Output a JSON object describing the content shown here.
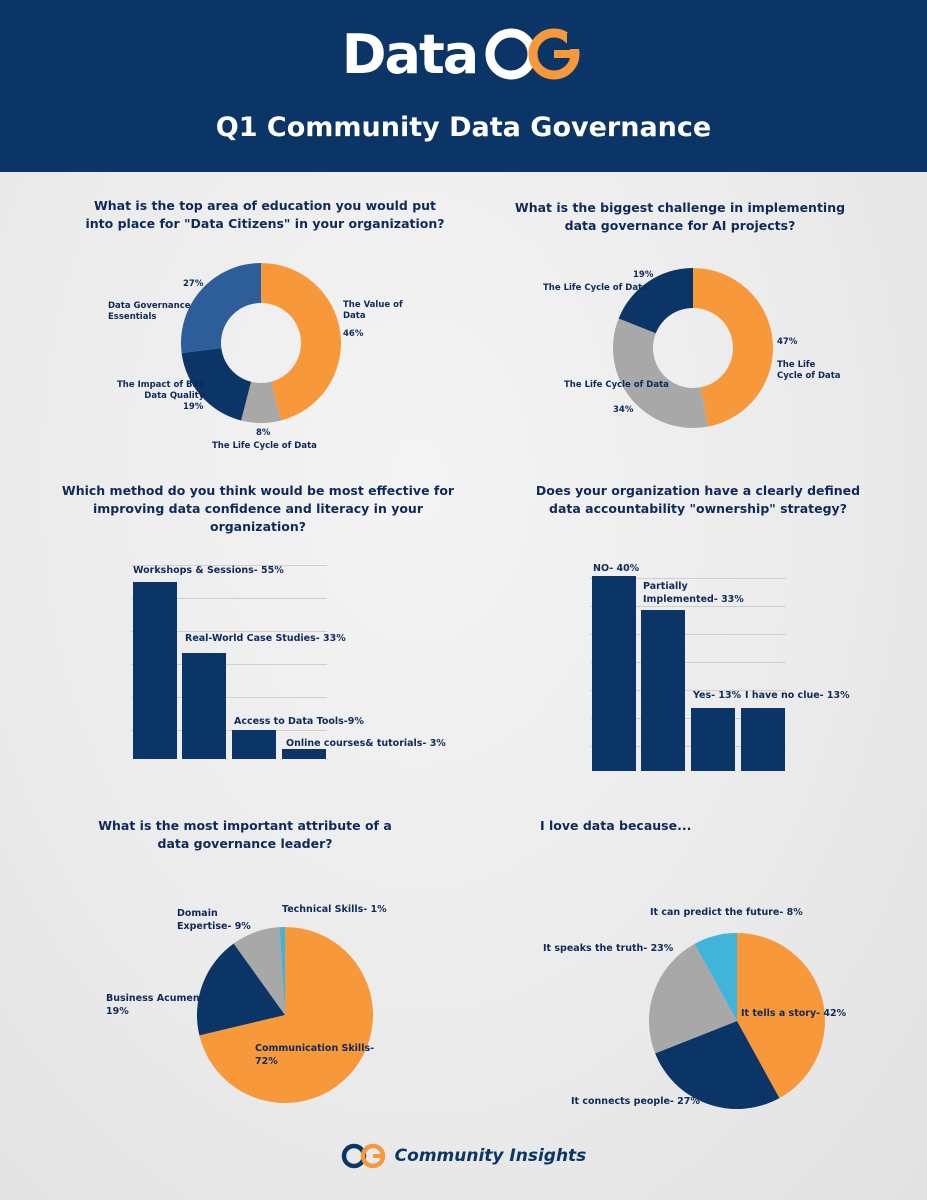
{
  "header": {
    "logo_text": "Data",
    "logo_mark": "CG",
    "title": "Q1 Community Data Governance"
  },
  "footer": {
    "label": "Community Insights"
  },
  "colors": {
    "navy": "#0a3566",
    "orange": "#f7993b",
    "gray": "#a8a8a8",
    "blue": "#2e5e99",
    "cyan": "#41b4d9"
  },
  "chart_data": [
    {
      "type": "pie",
      "title": "What is the top area of education you would put into place for \"Data Citizens\" in your organization?",
      "labels": [
        "The Value of Data",
        "The Life Cycle of Data",
        "The Impact of Bad Data Quality",
        "Data Governance Essentials"
      ],
      "values": [
        46,
        8,
        19,
        27
      ],
      "value_labels": [
        "46%",
        "8%",
        "19%",
        "27%"
      ],
      "colors": [
        "#f7993b",
        "#a8a8a8",
        "#0a3566",
        "#2e5e99"
      ],
      "donut": true
    },
    {
      "type": "pie",
      "title": "What is the biggest challenge in implementing data governance for AI projects?",
      "labels": [
        "The Life Cycle of Data",
        "The Life Cycle of Data",
        "The Life Cycle of Data"
      ],
      "values": [
        47,
        34,
        19
      ],
      "value_labels": [
        "47%",
        "34%",
        "19%"
      ],
      "colors": [
        "#f7993b",
        "#a8a8a8",
        "#0a3566"
      ],
      "donut": true
    },
    {
      "type": "bar",
      "title": "Which method do you think would be most effective for improving data confidence and literacy in your organization?",
      "categories": [
        "Workshops & Sessions- 55%",
        "Real-World Case Studies- 33%",
        "Access to Data Tools-9%",
        "Online courses& tutorials- 3%"
      ],
      "values": [
        55,
        33,
        9,
        3
      ]
    },
    {
      "type": "bar",
      "title": "Does your organization have a clearly defined data accountability \"ownership\" strategy?",
      "categories": [
        "NO- 40%",
        "Partially Implemented- 33%",
        "Yes- 13%",
        "I have no clue- 13%"
      ],
      "values": [
        40,
        33,
        13,
        13
      ]
    },
    {
      "type": "pie",
      "title": "What is the most important attribute of a data governance leader?",
      "labels": [
        "Communication Skills- 72%",
        "Business Acumen- 19%",
        "Domain Expertise- 9%",
        "Technical Skills- 1%"
      ],
      "values": [
        72,
        19,
        9,
        1
      ],
      "colors": [
        "#f7993b",
        "#0a3566",
        "#a8a8a8",
        "#41b4d9"
      ]
    },
    {
      "type": "pie",
      "title": "I love data because...",
      "labels": [
        "It tells a story- 42%",
        "It connects people- 27%",
        "It speaks the truth- 23%",
        "It can predict the future- 8%"
      ],
      "values": [
        42,
        27,
        23,
        8
      ],
      "colors": [
        "#f7993b",
        "#0a3566",
        "#a8a8a8",
        "#41b4d9"
      ]
    }
  ]
}
